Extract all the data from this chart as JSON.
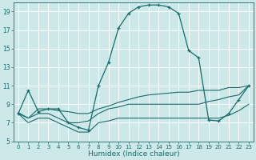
{
  "xlabel": "Humidex (Indice chaleur)",
  "bg_color": "#cce8e8",
  "line_color": "#1a6b6b",
  "grid_color": "#b0d8d8",
  "xlim": [
    -0.5,
    23.5
  ],
  "ylim": [
    5,
    20
  ],
  "yticks": [
    5,
    7,
    9,
    11,
    13,
    15,
    17,
    19
  ],
  "xticks": [
    0,
    1,
    2,
    3,
    4,
    5,
    6,
    7,
    8,
    9,
    10,
    11,
    12,
    13,
    14,
    15,
    16,
    17,
    18,
    19,
    20,
    21,
    22,
    23
  ],
  "series1_x": [
    0,
    1,
    2,
    3,
    4,
    5,
    6,
    7,
    8,
    9,
    10,
    11,
    12,
    13,
    14,
    15,
    16,
    17,
    18,
    19,
    20,
    21,
    22,
    23
  ],
  "series1_y": [
    8.0,
    10.5,
    8.2,
    8.5,
    8.5,
    7.0,
    6.5,
    6.2,
    11.0,
    13.5,
    17.2,
    18.8,
    19.5,
    19.7,
    19.7,
    19.5,
    18.8,
    14.8,
    14.0,
    7.3,
    7.2,
    8.0,
    9.5,
    11.0
  ],
  "series2_x": [
    0,
    1,
    2,
    3,
    4,
    5,
    6,
    7,
    8,
    9,
    10,
    11,
    12,
    13,
    14,
    15,
    16,
    17,
    18,
    19,
    20,
    21,
    22,
    23
  ],
  "series2_y": [
    8.1,
    7.5,
    8.5,
    8.5,
    8.3,
    8.2,
    8.0,
    8.0,
    8.5,
    8.8,
    9.2,
    9.5,
    9.8,
    10.0,
    10.1,
    10.2,
    10.3,
    10.3,
    10.5,
    10.5,
    10.5,
    10.8,
    10.8,
    11.0
  ],
  "series3_x": [
    0,
    1,
    2,
    3,
    4,
    5,
    6,
    7,
    8,
    9,
    10,
    11,
    12,
    13,
    14,
    15,
    16,
    17,
    18,
    19,
    20,
    21,
    22,
    23
  ],
  "series3_y": [
    8.0,
    7.0,
    7.5,
    7.5,
    7.0,
    6.5,
    6.0,
    6.0,
    7.0,
    7.2,
    7.5,
    7.5,
    7.5,
    7.5,
    7.5,
    7.5,
    7.5,
    7.5,
    7.5,
    7.5,
    7.5,
    7.8,
    8.3,
    9.0
  ],
  "series4_x": [
    0,
    1,
    2,
    3,
    4,
    5,
    6,
    7,
    8,
    9,
    10,
    11,
    12,
    13,
    14,
    15,
    16,
    17,
    18,
    19,
    20,
    21,
    22,
    23
  ],
  "series4_y": [
    8.0,
    7.5,
    8.0,
    8.0,
    7.5,
    7.0,
    7.0,
    7.2,
    8.0,
    8.5,
    8.7,
    9.0,
    9.0,
    9.0,
    9.0,
    9.0,
    9.0,
    9.0,
    9.0,
    9.3,
    9.5,
    9.8,
    10.0,
    11.0
  ]
}
